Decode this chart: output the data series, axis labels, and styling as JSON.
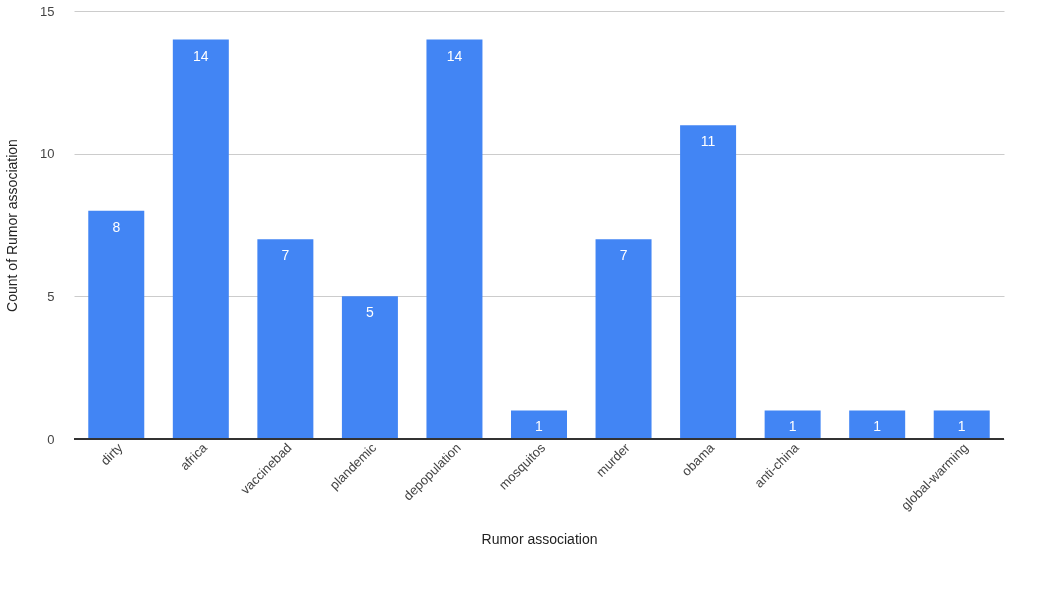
{
  "chart_data": {
    "type": "bar",
    "categories": [
      "dirty",
      "africa",
      "vaccinebad",
      "plandemic",
      "depopulation",
      "mosquitos",
      "murder",
      "obama",
      "anti-china",
      null,
      "global-warming"
    ],
    "values": [
      8,
      14,
      7,
      5,
      14,
      1,
      7,
      11,
      1,
      1,
      1
    ],
    "color": "#4285f4",
    "xlabel": "Rumor association",
    "ylabel": "Count of Rumor association",
    "ylim": [
      0,
      15
    ],
    "yticks": [
      0,
      5,
      10,
      15
    ],
    "grid": "y",
    "data_labels": true
  }
}
